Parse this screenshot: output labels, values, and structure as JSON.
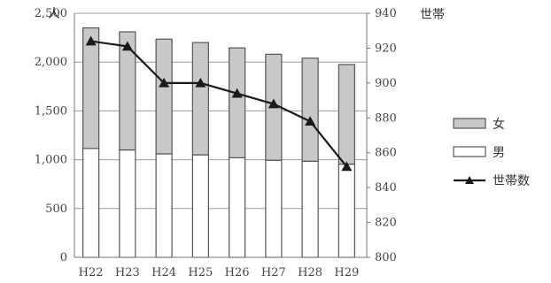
{
  "chart_data": {
    "type": "bar",
    "stacked": true,
    "categories": [
      "H22",
      "H23",
      "H24",
      "H25",
      "H26",
      "H27",
      "H28",
      "H29"
    ],
    "series": [
      {
        "name": "男",
        "kind": "bar",
        "axis": "left",
        "values": [
          1115,
          1100,
          1060,
          1050,
          1020,
          995,
          985,
          955
        ],
        "color": "#ffffff"
      },
      {
        "name": "女",
        "kind": "bar",
        "axis": "left",
        "values": [
          1235,
          1210,
          1175,
          1150,
          1125,
          1085,
          1055,
          1020
        ],
        "color": "#c8c8c8"
      },
      {
        "name": "世帯数",
        "kind": "line",
        "axis": "right",
        "values": [
          924,
          921,
          900,
          900,
          894,
          888,
          878,
          852
        ],
        "color": "#1a1a1a"
      }
    ],
    "left_axis": {
      "min": 0,
      "max": 2500,
      "step": 500,
      "tick_labels": [
        "0",
        "500",
        "1,000",
        "1,500",
        "2,000",
        "2,500"
      ],
      "unit": "人"
    },
    "right_axis": {
      "min": 800,
      "max": 940,
      "step": 20,
      "tick_labels": [
        "800",
        "820",
        "840",
        "860",
        "880",
        "900",
        "920",
        "940"
      ],
      "unit": "世帯"
    },
    "grid": true,
    "legend_position": "right",
    "legend_order": [
      "女",
      "男",
      "世帯数"
    ]
  }
}
